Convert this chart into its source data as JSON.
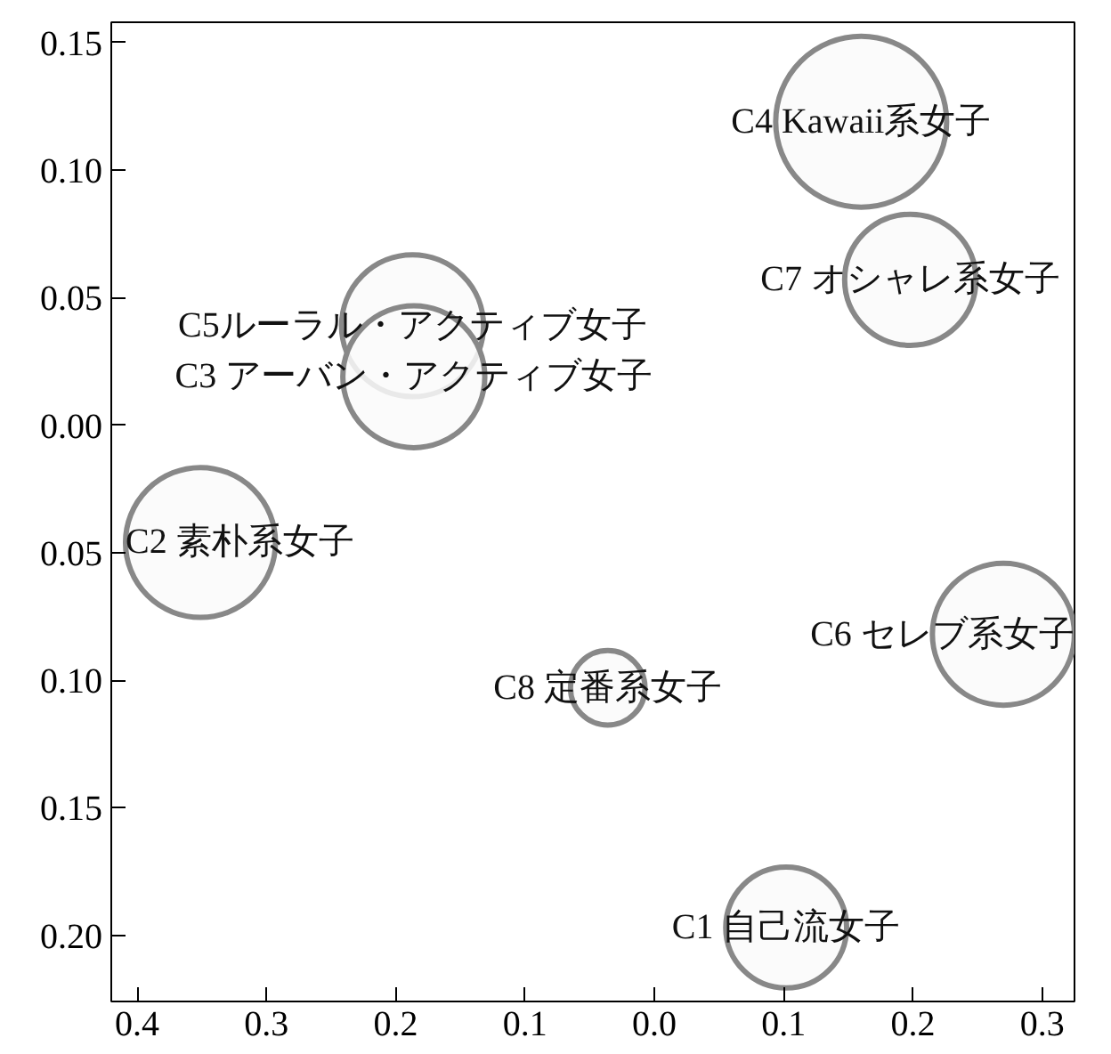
{
  "chart_data": {
    "type": "bubble",
    "x": [
      0.16,
      0.198,
      -0.187,
      -0.186,
      -0.351,
      -0.036,
      0.27,
      0.102
    ],
    "values": [
      0.119,
      0.057,
      0.039,
      0.019,
      -0.046,
      -0.103,
      -0.082,
      -0.197
    ],
    "sizes": [
      1,
      0.59,
      0.69,
      0.69,
      0.77,
      0.19,
      0.69,
      0.5
    ],
    "color": "#888888",
    "xlim": [
      -0.42,
      0.325
    ],
    "xticks": [
      {
        "value": -0.4,
        "label": "0.4"
      },
      {
        "value": -0.3,
        "label": "0.3"
      },
      {
        "value": -0.2,
        "label": "0.2"
      },
      {
        "value": -0.1,
        "label": "0.1"
      },
      {
        "value": 0,
        "label": "0.0"
      },
      {
        "value": 0.1,
        "label": "0.1"
      },
      {
        "value": 0.2,
        "label": "0.2"
      },
      {
        "value": 0.3,
        "label": "0.3"
      }
    ],
    "ylim": [
      -0.226,
      0.158
    ],
    "yticks": [
      {
        "value": 0.15,
        "label": "0.15"
      },
      {
        "value": 0.1,
        "label": "0.10"
      },
      {
        "value": 0.05,
        "label": "0.05"
      },
      {
        "value": 0,
        "label": "0.00"
      },
      {
        "value": -0.05,
        "label": "0.05"
      },
      {
        "value": -0.1,
        "label": "0.10"
      },
      {
        "value": -0.15,
        "label": "0.15"
      },
      {
        "value": -0.2,
        "label": "0.20"
      }
    ],
    "annotations": [
      {
        "text": "C4 Kawaii系女子",
        "x": 0.16,
        "y": 0.119
      },
      {
        "text": "C7 オシャレ系女子",
        "x": 0.198,
        "y": 0.057
      },
      {
        "text": "C5ルーラル・アクティブ女子",
        "x": -0.187,
        "y": 0.039
      },
      {
        "text": "C3 アーバン・アクティブ女子",
        "x": -0.186,
        "y": 0.019
      },
      {
        "text": "C2 素朴系女子",
        "x": -0.351,
        "y": -0.046
      },
      {
        "text": "C8 定番系女子",
        "x": -0.036,
        "y": -0.103
      },
      {
        "text": "C6 セレブ系女子",
        "x": 0.27,
        "y": -0.082
      },
      {
        "text": "C1 自己流女子",
        "x": 0.102,
        "y": -0.197
      }
    ]
  }
}
